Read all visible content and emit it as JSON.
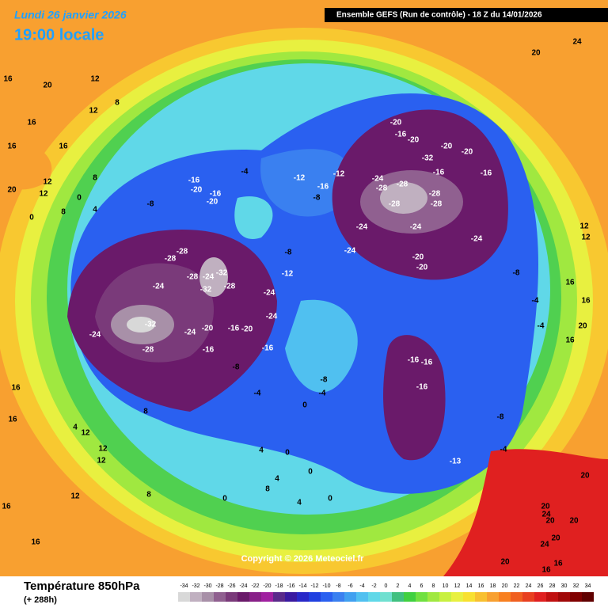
{
  "header": {
    "date": "Lundi 26 janvier 2026",
    "time": "19:00 locale",
    "run": "Ensemble GEFS  (Run de contrôle)  - 18 Z du 14/01/2026"
  },
  "copyright": "Copyright © 2026 Meteociel.fr",
  "footer": {
    "title": "Température 850hPa",
    "lead": "(+ 288h)"
  },
  "scale": {
    "values": [
      -34,
      -32,
      -30,
      -28,
      -26,
      -24,
      -22,
      -20,
      -18,
      -16,
      -14,
      -12,
      -10,
      -8,
      -6,
      -4,
      -2,
      0,
      2,
      4,
      6,
      8,
      10,
      12,
      14,
      16,
      18,
      20,
      22,
      24,
      26,
      28,
      30,
      32,
      34
    ],
    "colors": [
      "#d8d8d8",
      "#c0b0c0",
      "#a890a8",
      "#906090",
      "#7a3a7a",
      "#6a1a6a",
      "#882088",
      "#a020a0",
      "#5a2a8a",
      "#3a1aa0",
      "#2828c8",
      "#2040e0",
      "#2a60f0",
      "#3a80f0",
      "#40a0f0",
      "#50c0f0",
      "#60d8e8",
      "#70e0d0",
      "#40c080",
      "#40d040",
      "#70e040",
      "#a0e840",
      "#c8f040",
      "#e8f040",
      "#f8e030",
      "#f8c030",
      "#f8a030",
      "#f88020",
      "#f06020",
      "#e84020",
      "#e02020",
      "#c01010",
      "#a00808",
      "#800000",
      "#600000"
    ]
  },
  "map_labels": [
    16,
    20,
    16,
    12,
    12,
    8,
    16,
    16,
    12,
    8,
    20,
    12,
    8,
    4,
    0,
    0,
    -8,
    -16,
    -20,
    -16,
    -20,
    -28,
    -28,
    -24,
    -28,
    -24,
    -32,
    -28,
    -32,
    -24,
    -24,
    -32,
    -20,
    -16,
    -20,
    -24,
    -28,
    -24,
    -16,
    -16,
    -8,
    -12,
    -4,
    -8,
    -12,
    -8,
    -16,
    -12,
    -20,
    -16,
    -20,
    -20,
    -32,
    -20,
    -16,
    -24,
    -28,
    -28,
    -28,
    -28,
    -28,
    -24,
    -24,
    -20,
    -24,
    -20,
    -24,
    -16,
    -16,
    -16,
    -16,
    -13,
    -8,
    -4,
    -8,
    -4,
    -4,
    -4,
    -8,
    -4,
    0,
    0,
    0,
    4,
    4,
    8,
    12,
    12,
    16,
    16,
    12,
    8,
    4,
    0,
    0,
    4,
    8,
    12,
    16,
    16,
    20,
    20,
    20,
    24,
    24,
    20,
    16,
    20,
    12,
    16,
    12,
    16,
    16,
    20,
    20,
    24,
    16,
    20
  ]
}
